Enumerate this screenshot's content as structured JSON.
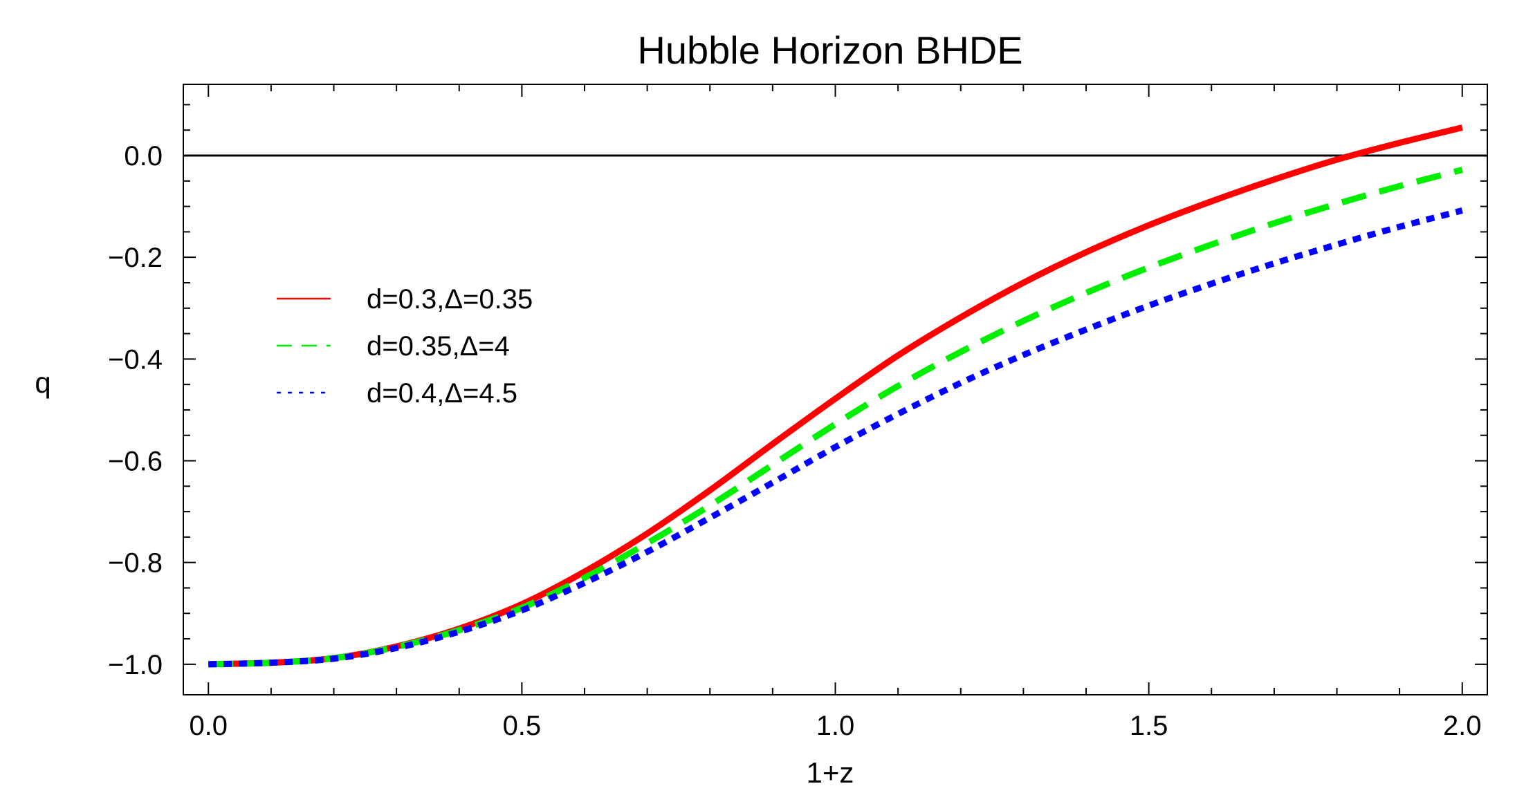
{
  "chart_data": {
    "type": "line",
    "title": "Hubble Horizon BHDE",
    "xlabel": "1+z",
    "ylabel": "q",
    "xlim": [
      -0.04,
      2.04
    ],
    "ylim": [
      -1.06,
      0.14
    ],
    "xticks": [
      0.0,
      0.5,
      1.0,
      1.5,
      2.0
    ],
    "xtick_labels": [
      "0.0",
      "0.5",
      "1.0",
      "1.5",
      "2.0"
    ],
    "yticks": [
      0.0,
      -0.2,
      -0.4,
      -0.6,
      -0.8,
      -1.0
    ],
    "ytick_labels": [
      "0.0",
      "−0.2",
      "−0.4",
      "−0.6",
      "−0.8",
      "−1.0"
    ],
    "reference_line": {
      "y": 0.0,
      "color": "#000000"
    },
    "grid": false,
    "legend_position": "center-left",
    "x": [
      0.0,
      0.1,
      0.2,
      0.3,
      0.4,
      0.5,
      0.6,
      0.7,
      0.8,
      0.9,
      1.0,
      1.1,
      1.2,
      1.3,
      1.4,
      1.5,
      1.6,
      1.7,
      1.8,
      1.9,
      2.0
    ],
    "series": [
      {
        "name": "d=0.3,Δ=0.35",
        "color": "#ff0000",
        "style": "solid",
        "values": [
          -1.0,
          -0.997,
          -0.988,
          -0.965,
          -0.93,
          -0.882,
          -0.818,
          -0.743,
          -0.658,
          -0.567,
          -0.478,
          -0.393,
          -0.318,
          -0.25,
          -0.19,
          -0.137,
          -0.09,
          -0.047,
          -0.008,
          0.025,
          0.055
        ]
      },
      {
        "name": "d=0.35,Δ=4",
        "color": "#00ee00",
        "style": "dashed",
        "values": [
          -1.0,
          -0.997,
          -0.988,
          -0.966,
          -0.933,
          -0.889,
          -0.83,
          -0.762,
          -0.688,
          -0.608,
          -0.528,
          -0.453,
          -0.386,
          -0.325,
          -0.27,
          -0.22,
          -0.175,
          -0.133,
          -0.095,
          -0.06,
          -0.028
        ]
      },
      {
        "name": "d=0.4,Δ=4.5",
        "color": "#0000ff",
        "style": "dotted",
        "values": [
          -1.0,
          -0.997,
          -0.989,
          -0.968,
          -0.936,
          -0.894,
          -0.84,
          -0.779,
          -0.712,
          -0.643,
          -0.573,
          -0.508,
          -0.447,
          -0.392,
          -0.342,
          -0.295,
          -0.252,
          -0.212,
          -0.175,
          -0.14,
          -0.108
        ]
      }
    ]
  }
}
